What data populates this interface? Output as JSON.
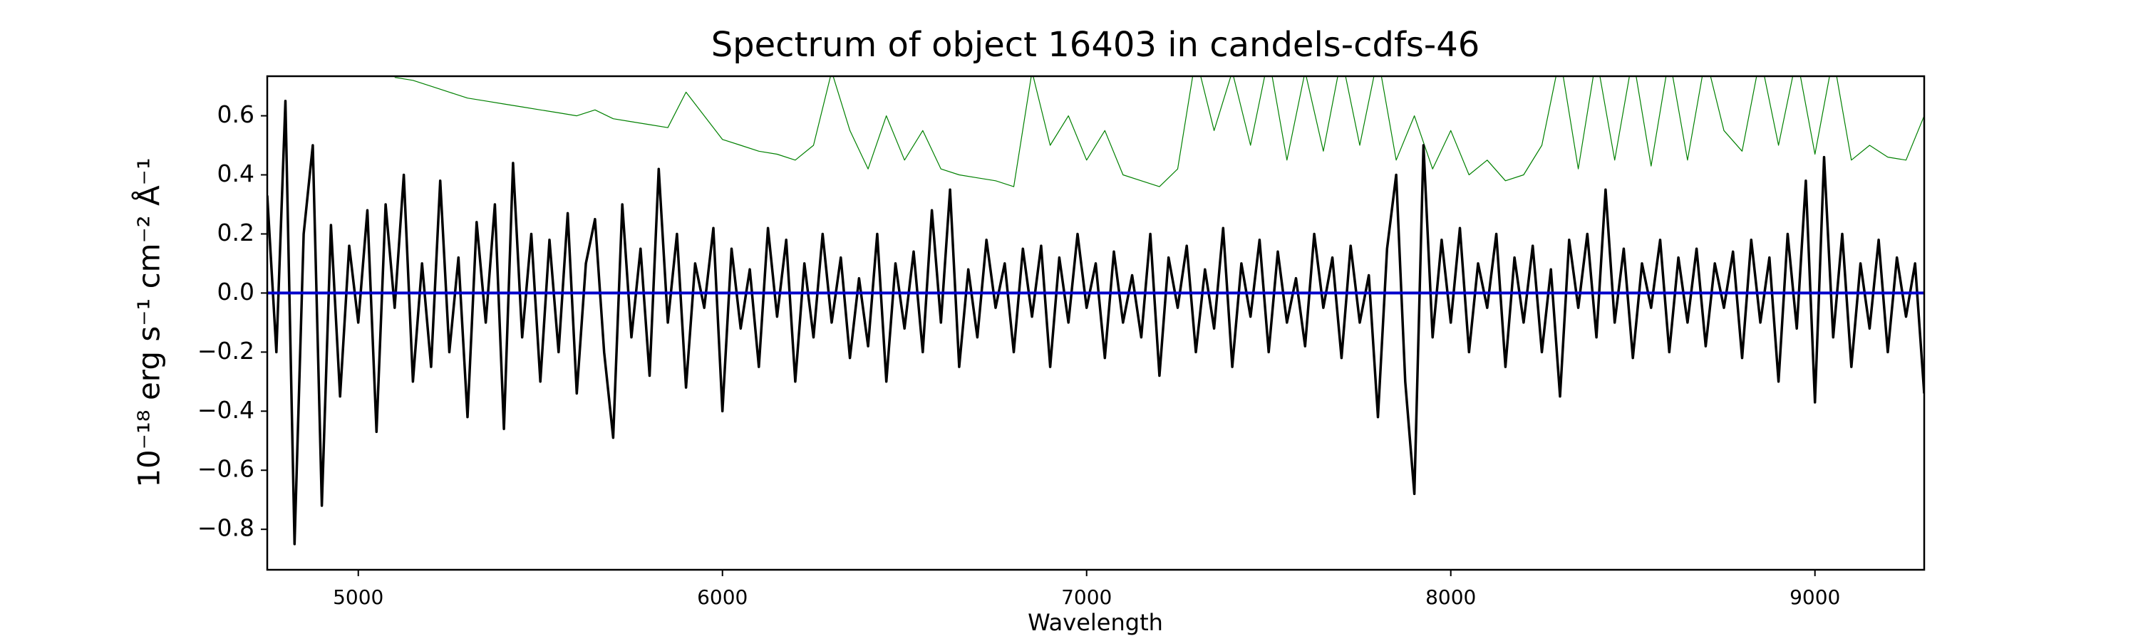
{
  "chart_data": {
    "type": "line",
    "title": "Spectrum of object 16403 in candels-cdfs-46",
    "xlabel": "Wavelength",
    "ylabel": "10⁻¹⁸ erg s⁻¹ cm⁻² Å⁻¹",
    "xlim": [
      4750,
      9300
    ],
    "ylim": [
      -0.937,
      0.734
    ],
    "xticks": [
      5000,
      6000,
      7000,
      8000,
      9000
    ],
    "yticks": [
      {
        "value": -0.8,
        "label": "−0.8"
      },
      {
        "value": -0.6,
        "label": "−0.6"
      },
      {
        "value": -0.4,
        "label": "−0.4"
      },
      {
        "value": -0.2,
        "label": "−0.2"
      },
      {
        "value": 0,
        "label": "0.0"
      },
      0.2,
      0.4,
      0.6
    ],
    "series": [
      {
        "color": "#008000",
        "width": 1.2,
        "x": [
          5100,
          5150,
          5200,
          5250,
          5300,
          5350,
          5400,
          5450,
          5500,
          5550,
          5600,
          5650,
          5700,
          5750,
          5800,
          5850,
          5900,
          5950,
          6000,
          6050,
          6100,
          6150,
          6200,
          6250,
          6300,
          6350,
          6400,
          6450,
          6500,
          6550,
          6600,
          6650,
          6700,
          6750,
          6800,
          6850,
          6900,
          6950,
          7000,
          7050,
          7100,
          7150,
          7200,
          7250,
          7300,
          7350,
          7400,
          7450,
          7500,
          7550,
          7600,
          7650,
          7700,
          7750,
          7800,
          7850,
          7900,
          7950,
          8000,
          8050,
          8100,
          8150,
          8200,
          8250,
          8300,
          8350,
          8400,
          8450,
          8500,
          8550,
          8600,
          8650,
          8700,
          8750,
          8800,
          8850,
          8900,
          8950,
          9000,
          9050,
          9100,
          9150,
          9200,
          9250,
          9300
        ],
        "values": [
          0.73,
          0.72,
          0.7,
          0.68,
          0.66,
          0.65,
          0.64,
          0.63,
          0.62,
          0.61,
          0.6,
          0.62,
          0.59,
          0.58,
          0.57,
          0.56,
          0.68,
          0.6,
          0.52,
          0.5,
          0.48,
          0.47,
          0.45,
          0.5,
          0.75,
          0.55,
          0.42,
          0.6,
          0.45,
          0.55,
          0.42,
          0.4,
          0.39,
          0.38,
          0.36,
          0.75,
          0.5,
          0.6,
          0.45,
          0.55,
          0.4,
          0.38,
          0.36,
          0.42,
          0.8,
          0.55,
          0.75,
          0.5,
          0.8,
          0.45,
          0.75,
          0.48,
          0.8,
          0.5,
          0.8,
          0.45,
          0.6,
          0.42,
          0.55,
          0.4,
          0.45,
          0.38,
          0.4,
          0.5,
          0.8,
          0.42,
          0.8,
          0.45,
          0.8,
          0.43,
          0.8,
          0.45,
          0.8,
          0.55,
          0.48,
          0.8,
          0.5,
          0.8,
          0.47,
          0.8,
          0.45,
          0.5,
          0.46,
          0.45,
          0.6
        ]
      },
      {
        "color": "#000000",
        "width": 3.5,
        "x": [
          4750,
          4775,
          4800,
          4825,
          4850,
          4875,
          4900,
          4925,
          4950,
          4975,
          5000,
          5025,
          5050,
          5075,
          5100,
          5125,
          5150,
          5175,
          5200,
          5225,
          5250,
          5275,
          5300,
          5325,
          5350,
          5375,
          5400,
          5425,
          5450,
          5475,
          5500,
          5525,
          5550,
          5575,
          5600,
          5625,
          5650,
          5675,
          5700,
          5725,
          5750,
          5775,
          5800,
          5825,
          5850,
          5875,
          5900,
          5925,
          5950,
          5975,
          6000,
          6025,
          6050,
          6075,
          6100,
          6125,
          6150,
          6175,
          6200,
          6225,
          6250,
          6275,
          6300,
          6325,
          6350,
          6375,
          6400,
          6425,
          6450,
          6475,
          6500,
          6525,
          6550,
          6575,
          6600,
          6625,
          6650,
          6675,
          6700,
          6725,
          6750,
          6775,
          6800,
          6825,
          6850,
          6875,
          6900,
          6925,
          6950,
          6975,
          7000,
          7025,
          7050,
          7075,
          7100,
          7125,
          7150,
          7175,
          7200,
          7225,
          7250,
          7275,
          7300,
          7325,
          7350,
          7375,
          7400,
          7425,
          7450,
          7475,
          7500,
          7525,
          7550,
          7575,
          7600,
          7625,
          7650,
          7675,
          7700,
          7725,
          7750,
          7775,
          7800,
          7825,
          7850,
          7875,
          7900,
          7925,
          7950,
          7975,
          8000,
          8025,
          8050,
          8075,
          8100,
          8125,
          8150,
          8175,
          8200,
          8225,
          8250,
          8275,
          8300,
          8325,
          8350,
          8375,
          8400,
          8425,
          8450,
          8475,
          8500,
          8525,
          8550,
          8575,
          8600,
          8625,
          8650,
          8675,
          8700,
          8725,
          8750,
          8775,
          8800,
          8825,
          8850,
          8875,
          8900,
          8925,
          8950,
          8975,
          9000,
          9025,
          9050,
          9075,
          9100,
          9125,
          9150,
          9175,
          9200,
          9225,
          9250,
          9275,
          9300
        ],
        "values": [
          0.33,
          -0.2,
          0.65,
          -0.85,
          0.2,
          0.5,
          -0.72,
          0.23,
          -0.35,
          0.16,
          -0.1,
          0.28,
          -0.47,
          0.3,
          -0.05,
          0.4,
          -0.3,
          0.1,
          -0.25,
          0.38,
          -0.2,
          0.12,
          -0.42,
          0.24,
          -0.1,
          0.3,
          -0.46,
          0.44,
          -0.15,
          0.2,
          -0.3,
          0.18,
          -0.2,
          0.27,
          -0.34,
          0.1,
          0.25,
          -0.2,
          -0.49,
          0.3,
          -0.15,
          0.15,
          -0.28,
          0.42,
          -0.1,
          0.2,
          -0.32,
          0.1,
          -0.05,
          0.22,
          -0.4,
          0.15,
          -0.12,
          0.08,
          -0.25,
          0.22,
          -0.08,
          0.18,
          -0.3,
          0.1,
          -0.15,
          0.2,
          -0.1,
          0.12,
          -0.22,
          0.05,
          -0.18,
          0.2,
          -0.3,
          0.1,
          -0.12,
          0.14,
          -0.2,
          0.28,
          -0.1,
          0.35,
          -0.25,
          0.08,
          -0.15,
          0.18,
          -0.05,
          0.1,
          -0.2,
          0.15,
          -0.08,
          0.16,
          -0.25,
          0.12,
          -0.1,
          0.2,
          -0.05,
          0.1,
          -0.22,
          0.14,
          -0.1,
          0.06,
          -0.15,
          0.2,
          -0.28,
          0.12,
          -0.05,
          0.16,
          -0.2,
          0.08,
          -0.12,
          0.22,
          -0.25,
          0.1,
          -0.08,
          0.18,
          -0.2,
          0.14,
          -0.1,
          0.05,
          -0.18,
          0.2,
          -0.05,
          0.12,
          -0.22,
          0.16,
          -0.1,
          0.06,
          -0.42,
          0.15,
          0.4,
          -0.3,
          -0.68,
          0.5,
          -0.15,
          0.18,
          -0.1,
          0.22,
          -0.2,
          0.1,
          -0.05,
          0.2,
          -0.25,
          0.12,
          -0.1,
          0.16,
          -0.2,
          0.08,
          -0.35,
          0.18,
          -0.05,
          0.2,
          -0.15,
          0.35,
          -0.1,
          0.15,
          -0.22,
          0.1,
          -0.05,
          0.18,
          -0.2,
          0.12,
          -0.1,
          0.15,
          -0.18,
          0.1,
          -0.05,
          0.14,
          -0.22,
          0.18,
          -0.1,
          0.12,
          -0.3,
          0.2,
          -0.12,
          0.38,
          -0.37,
          0.46,
          -0.15,
          0.2,
          -0.25,
          0.1,
          -0.12,
          0.18,
          -0.2,
          0.12,
          -0.08,
          0.1,
          -0.34
        ]
      },
      {
        "color": "#0000cc",
        "width": 4,
        "x": [
          4750,
          9300
        ],
        "values": [
          0,
          0
        ]
      }
    ]
  }
}
